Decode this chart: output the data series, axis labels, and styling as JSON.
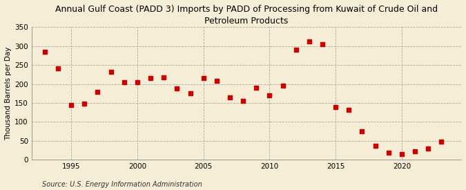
{
  "title": "Annual Gulf Coast (PADD 3) Imports by PADD of Processing from Kuwait of Crude Oil and\nPetroleum Products",
  "ylabel": "Thousand Barrels per Day",
  "source": "Source: U.S. Energy Information Administration",
  "background_color": "#f5edd6",
  "plot_background_color": "#f5edd6",
  "marker_color": "#cc0000",
  "years": [
    1993,
    1994,
    1995,
    1996,
    1997,
    1998,
    1999,
    2000,
    2001,
    2002,
    2003,
    2004,
    2005,
    2006,
    2007,
    2008,
    2009,
    2010,
    2011,
    2012,
    2013,
    2014,
    2015,
    2016,
    2017,
    2018,
    2019,
    2020,
    2021,
    2022,
    2023
  ],
  "values": [
    285,
    242,
    145,
    148,
    180,
    232,
    204,
    205,
    215,
    218,
    188,
    175,
    215,
    208,
    165,
    155,
    190,
    170,
    195,
    290,
    313,
    305,
    140,
    132,
    76,
    37,
    18,
    15,
    22,
    30,
    48
  ],
  "ylim": [
    0,
    350
  ],
  "yticks": [
    0,
    50,
    100,
    150,
    200,
    250,
    300,
    350
  ],
  "xlim": [
    1992.0,
    2024.5
  ],
  "xticks": [
    1995,
    2000,
    2005,
    2010,
    2015,
    2020
  ],
  "h_grid_color": "#aaaaaa",
  "v_grid_color": "#aaaaaa",
  "title_fontsize": 9,
  "label_fontsize": 7.5,
  "tick_fontsize": 7.5,
  "source_fontsize": 7
}
